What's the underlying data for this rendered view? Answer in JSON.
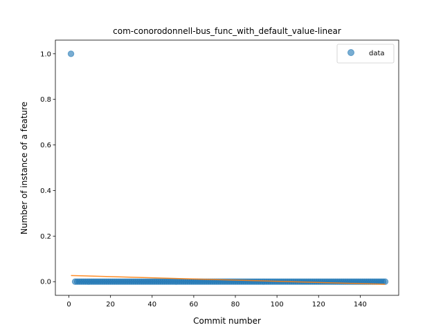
{
  "chart_data": {
    "type": "scatter",
    "title": "com-conorodonnell-bus_func_with_default_value-linear",
    "xlabel": "Commit number",
    "ylabel": "Number of instance of a feature",
    "xlim": [
      -6.5,
      158.5
    ],
    "ylim": [
      -0.06,
      1.06
    ],
    "xticks": [
      0,
      20,
      40,
      60,
      80,
      100,
      120,
      140
    ],
    "yticks": [
      0.0,
      0.2,
      0.4,
      0.6,
      0.8,
      1.0
    ],
    "xtick_labels": [
      "0",
      "20",
      "40",
      "60",
      "80",
      "100",
      "120",
      "140"
    ],
    "ytick_labels": [
      "0.0",
      "0.2",
      "0.4",
      "0.6",
      "0.8",
      "1.0"
    ],
    "legend": {
      "position": "top-right",
      "entries": [
        "data"
      ]
    },
    "grid": false,
    "series": [
      {
        "name": "data",
        "kind": "scatter",
        "color": "#1f77b4",
        "points": [
          [
            1,
            1.0
          ]
        ],
        "zero_run": {
          "x_start": 3,
          "x_end": 152,
          "y": 0.0
        }
      },
      {
        "kind": "line",
        "color": "#ff7f0e",
        "x": [
          1,
          152
        ],
        "y": [
          0.027,
          -0.0115
        ]
      }
    ]
  }
}
